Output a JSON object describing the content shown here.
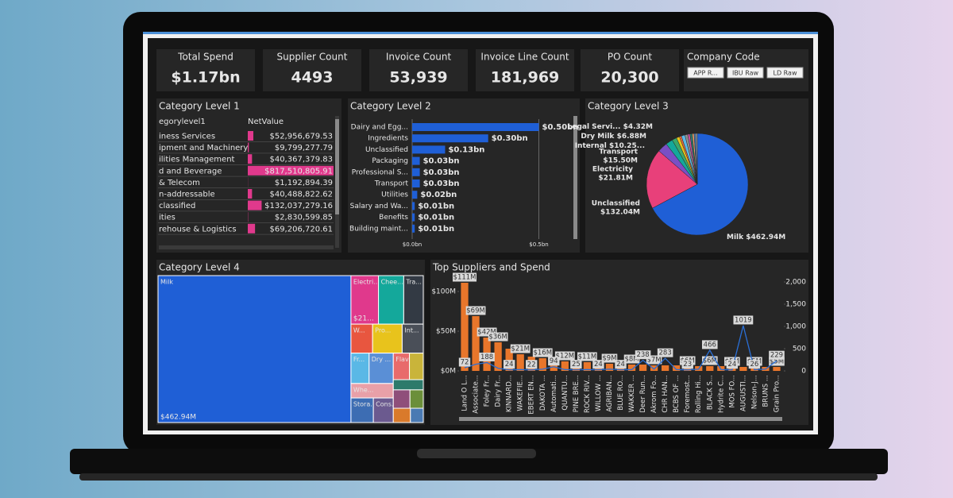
{
  "kpis": [
    {
      "label": "Total Spend",
      "value": "$1.17bn"
    },
    {
      "label": "Supplier Count",
      "value": "4493"
    },
    {
      "label": "Invoice Count",
      "value": "53,939"
    },
    {
      "label": "Invoice Line Count",
      "value": "181,969"
    },
    {
      "label": "PO Count",
      "value": "20,300"
    }
  ],
  "company_code": {
    "title": "Company Code",
    "options": [
      "APP R...",
      "IBU Raw",
      "LD Raw"
    ]
  },
  "table": {
    "title": "Category Level 1",
    "columns": [
      "egorylevel1",
      "NetValue"
    ],
    "rows": [
      "iness Services",
      "ipment and Machinery",
      "ilities Management",
      "d and Beverage",
      "& Telecom",
      "n-addressable",
      "classified",
      "ities",
      "rehouse & Logistics"
    ],
    "values": [
      52956679.53,
      9799277.79,
      40367379.83,
      817510805.91,
      1192894.39,
      40488822.62,
      132037279.16,
      2830599.85,
      69206720.61
    ],
    "value_labels": [
      "$52,956,679.53",
      "$9,799,277.79",
      "$40,367,379.83",
      "$817,510,805.91",
      "$1,192,894.39",
      "$40,488,822.62",
      "$132,037,279.16",
      "$2,830,599.85",
      "$69,206,720.61"
    ],
    "color": "#e0398c"
  },
  "chart_data": [
    {
      "type": "bar",
      "horizontal": true,
      "title": "Category Level 2",
      "categories": [
        "Dairy and Egg...",
        "Ingredients",
        "Unclassified",
        "Packaging",
        "Professional S...",
        "Transport",
        "Utilities",
        "Salary and Wa...",
        "Benefits",
        "Building maint..."
      ],
      "values": [
        0.5,
        0.3,
        0.13,
        0.03,
        0.03,
        0.03,
        0.02,
        0.01,
        0.01,
        0.01
      ],
      "value_labels": [
        "$0.50bn",
        "$0.30bn",
        "$0.13bn",
        "$0.03bn",
        "$0.03bn",
        "$0.03bn",
        "$0.02bn",
        "$0.01bn",
        "$0.01bn",
        "$0.01bn"
      ],
      "color": "#1f5fd6",
      "xlim": [
        0,
        0.63
      ],
      "xticks": [
        {
          "value": 0,
          "label": "$0.0bn"
        },
        {
          "value": 0.5,
          "label": "$0.5bn"
        }
      ],
      "grid": true
    },
    {
      "type": "pie",
      "title": "Category Level 3",
      "categories": [
        "Milk",
        "Unclassified",
        "Electricity",
        "Transport",
        "Internal",
        "Dry Milk",
        "Legal Servi...",
        null,
        null,
        null,
        null,
        null,
        null,
        null
      ],
      "values": [
        462.94,
        132.04,
        21.81,
        15.5,
        10.25,
        6.88,
        4.32,
        8,
        6,
        5,
        5,
        4,
        4,
        3
      ],
      "value_labels": [
        "$462.94M",
        "$132.04M",
        "$21.81M",
        "$15.50M",
        "$10.25...",
        "$6.88M",
        "$4.32M",
        null,
        null,
        null,
        null,
        null,
        null,
        null
      ],
      "colors": [
        "#1f5fd6",
        "#e8407a",
        "#7a4fc4",
        "#14a89b",
        "#3aa86b",
        "#e8c31c",
        "#e86b3f",
        "#5ab8e6",
        "#8f8f8f",
        "#c94fa0",
        "#2d7a6b",
        "#e8a06b",
        "#4a7ab3",
        "#b3b3b3"
      ]
    },
    {
      "type": "treemap",
      "title": "Category Level 4",
      "categories": [
        "Milk",
        "Electri...",
        "Chee...",
        "Tra...",
        "W...",
        "Pro...",
        "Int...",
        "Fr...",
        "Dry ...",
        "Whe...",
        "Stora...",
        "Cons...",
        "Flavors",
        null,
        null,
        null,
        null,
        null,
        null
      ],
      "values": [
        462.94,
        21.81,
        20,
        15.5,
        10.25,
        14,
        10,
        9,
        12,
        10,
        9,
        8,
        7,
        6,
        5,
        5,
        4,
        4,
        3
      ],
      "value_labels": [
        "$462.94M",
        "$21...",
        null,
        null,
        null,
        null,
        null,
        null,
        null,
        null,
        null,
        null,
        null,
        null,
        null,
        null,
        null,
        null,
        null
      ],
      "colors": [
        "#1f5fd6",
        "#e0398c",
        "#14a89b",
        "#333a44",
        "#e8563f",
        "#e8c31c",
        "#4a4f58",
        "#5ab8e6",
        "#5a8fd6",
        "#e8a0a8",
        "#3d6db3",
        "#6b5a8f",
        "#e86b6b",
        "#c9b43a",
        "#2d7a6b",
        "#8f4f7a",
        "#6b8f3a",
        "#d97a2b",
        "#4a7ab3"
      ]
    },
    {
      "type": "combo",
      "title": "Top Suppliers and Spend",
      "categories": [
        "Land O L...",
        "Associate...",
        "Foley Fr...",
        "Dairy Fr...",
        "KINNARD...",
        "WAKEFIE...",
        "EBERT EN...",
        "DAKOTA ...",
        "Automati...",
        "QUANTU...",
        "PINE BRE...",
        "ROCK RIV...",
        "WILLOW ...",
        "AGRIBAN...",
        "BLUE RO...",
        "WAKKER ...",
        "Deer Run...",
        "Akrom Fo...",
        "CHR HAN...",
        "BCBS OF ...",
        "Foremost...",
        "Rolling Hi...",
        "BLACK S...",
        "Hydrite C...",
        "MOS FO...",
        "AUGUSTI...",
        "Nelson-J...",
        "BRUNS ...",
        "Grain Pro..."
      ],
      "series": [
        {
          "color": "#e8762b",
          "values": [
            111,
            69,
            42,
            36,
            28,
            21,
            18,
            16,
            13,
            12,
            11.5,
            11,
            10,
            9,
            8.5,
            8,
            8,
            7,
            7,
            7,
            6,
            6,
            6,
            6,
            5,
            5,
            5,
            5,
            5
          ],
          "value_labels": [
            "$111M",
            "$69M",
            "$42M",
            "$36M",
            null,
            "$21M",
            null,
            "$16M",
            null,
            "$12M",
            null,
            "$11M",
            null,
            "$9M",
            null,
            "$8M",
            null,
            "$7M",
            null,
            null,
            "$6M",
            null,
            "$6M",
            null,
            "$5M",
            null,
            "$5M",
            null,
            "$5M"
          ]
        },
        {
          "color": "#2a6fd6",
          "axis": "y2",
          "values": [
            72,
            150,
            188,
            60,
            24,
            30,
            22,
            40,
            94,
            30,
            25,
            30,
            24,
            40,
            24,
            30,
            238,
            40,
            283,
            30,
            23,
            40,
            466,
            30,
            24,
            1019,
            26,
            40,
            229
          ],
          "value_labels": [
            "72",
            null,
            "188",
            null,
            "24",
            null,
            "22",
            null,
            "94",
            null,
            "25",
            null,
            "24",
            null,
            "24",
            null,
            "238",
            null,
            "283",
            null,
            "23",
            null,
            "466",
            null,
            "24",
            "1019",
            "26",
            null,
            "229"
          ]
        }
      ],
      "ylim": [
        0,
        112
      ],
      "yticks": [
        {
          "value": 0,
          "label": "$0M"
        },
        {
          "value": 50,
          "label": "$50M"
        },
        {
          "value": 100,
          "label": "$100M"
        }
      ],
      "y2lim": [
        0,
        2000
      ],
      "y2ticks": [
        0,
        500,
        {
          "value": 1000,
          "label": "1,000"
        },
        {
          "value": 1500,
          "label": "1,500"
        },
        {
          "value": 2000,
          "label": "2,000"
        }
      ]
    }
  ]
}
